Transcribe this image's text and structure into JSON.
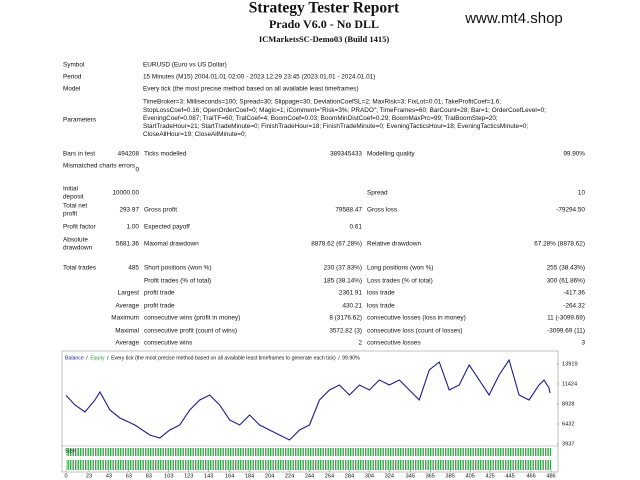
{
  "header": {
    "title": "Strategy Tester Report",
    "expert": "Prado V6.0 - No DLL",
    "server": "ICMarketsSC-Demo03 (Build 1415)",
    "watermark": "www.mt4.shop"
  },
  "info": [
    {
      "label": "Symbol",
      "value": "EURUSD (Euro vs US Dollar)"
    },
    {
      "label": "Period",
      "value": "15 Minutes (M15) 2004.01.01 02:00 - 2023.12.29 23:45 (2023.01.01 - 2024.01.01)"
    },
    {
      "label": "Model",
      "value": "Every tick (the most precise method based on all available least timeframes)"
    }
  ],
  "parameters": {
    "label": "Parameters",
    "lines": [
      "TimeBroker=3; Milliseconds=100; Spread=30; Slippage=30; DeviationCoefSL=2; MaxRisk=3; FixLot=0.01; TakeProfitCoef=1.6;",
      "StopLossCoef=0.16; OpenOrderCoef=0; Magic=1; iComment=\"Risk=3%; PRADO\"; TimeFrames=60; BarCount=28; Bar=1; OrderCoefLevel=0;",
      "EveningCoef=0.087; TralTF=60; TralCoef=4; BoomCoef=0.03; BoomMinDistCoef=0.29; BoomMaxPrc=99; TralBoomStep=20;",
      "StartTradeHour=21; StartTradeMinute=0; FinishTradeHour=18; FinishTradeMinute=0; EveningTacticsHour=18; EveningTacticsMinute=0;",
      "CloseAllHour=19; CloseAllMinute=0;"
    ]
  },
  "stats": [
    {
      "l1": "Bars in test",
      "v1": "494208",
      "l2": "Ticks modelled",
      "v2": "389345433",
      "l3": "Modelling quality",
      "v3": "99.90%"
    },
    {
      "l1": "Mismatched charts errors",
      "v1": "0"
    },
    {
      "l1": "Initial deposit",
      "v1": "10000.00",
      "l3": "Spread",
      "v3": "10"
    },
    {
      "l1": "Total net profit",
      "v1": "293.97",
      "l2": "Gross profit",
      "v2": "79588.47",
      "l3": "Gross loss",
      "v3": "-79294.50"
    },
    {
      "l1": "Profit factor",
      "v1": "1.00",
      "l2": "Expected payoff",
      "v2": "0.61"
    },
    {
      "l1": "Absolute drawdown",
      "v1": "5681.36",
      "l2": "Maximal drawdown",
      "v2": "8878.62 (67.28%)",
      "l3": "Relative drawdown",
      "v3": "67.28% (8878.62)"
    },
    {
      "l1": "Total trades",
      "v1": "485",
      "l2": "Short positions (won %)",
      "v2": "230 (37.83%)",
      "l3": "Long positions (won %)",
      "v3": "255 (38.43%)"
    },
    {
      "l2": "Profit trades (% of total)",
      "v2": "185 (38.14%)",
      "l3": "Loss trades (% of total)",
      "v3": "300 (61.86%)"
    },
    {
      "r1": "Largest",
      "l2": "profit trade",
      "v2": "2361.91",
      "l3": "loss trade",
      "v3": "-417.36"
    },
    {
      "r1": "Average",
      "l2": "profit trade",
      "v2": "430.21",
      "l3": "loss trade",
      "v3": "-264.32"
    },
    {
      "r1": "Maximum",
      "l2": "consecutive wins (profit in money)",
      "v2": "8 (3176.62)",
      "l3": "consecutive losses (loss in money)",
      "v3": "11 (-3099.69)"
    },
    {
      "r1": "Maximal",
      "l2": "consecutive profit (count of wins)",
      "v2": "3572.82 (3)",
      "l3": "consecutive loss (count of losses)",
      "v3": "-3099.69 (11)"
    },
    {
      "r1": "Average",
      "l2": "consecutive wins",
      "v2": "2",
      "l3": "consecutive losses",
      "v3": "3"
    }
  ],
  "chart_data": {
    "type": "line",
    "legend": {
      "balance": "Balance",
      "sep1": "/",
      "equity": "Equity",
      "sep2": "/",
      "model": "Every tick (the most precise method based on all available least timeframes to generate each tick)",
      "sep3": "/",
      "quality": "99.90%"
    },
    "size_label": "Size",
    "x": [
      0,
      9,
      19,
      29,
      34,
      44,
      54,
      69,
      84,
      94,
      104,
      114,
      124,
      134,
      144,
      154,
      164,
      174,
      184,
      194,
      204,
      214,
      224,
      234,
      244,
      254,
      264,
      274,
      284,
      294,
      304,
      314,
      324,
      334,
      344,
      354,
      364,
      374,
      384,
      394,
      404,
      414,
      424,
      434,
      444,
      454,
      464,
      474,
      479,
      484,
      485
    ],
    "series": [
      {
        "name": "Balance",
        "color": "#1c1c8f",
        "values": [
          10000,
          8804,
          7931,
          9428,
          10426,
          8181,
          7183,
          6309,
          5062,
          4688,
          5686,
          6309,
          8181,
          9428,
          10052,
          8804,
          6933,
          6309,
          7557,
          6309,
          5686,
          5062,
          4438,
          5686,
          6309,
          9428,
          10676,
          11299,
          10052,
          11299,
          10676,
          11923,
          11299,
          11923,
          10676,
          9428,
          13171,
          14169,
          10676,
          11299,
          13794,
          11923,
          10052,
          12547,
          14418,
          10052,
          9428,
          11299,
          11923,
          10925,
          10294
        ]
      }
    ],
    "xlim": [
      0,
      486
    ],
    "ylim": [
      3937,
      15040
    ],
    "xticks": [
      0,
      23,
      43,
      63,
      83,
      103,
      123,
      143,
      164,
      184,
      204,
      224,
      244,
      264,
      284,
      304,
      324,
      345,
      365,
      385,
      405,
      425,
      445,
      466,
      486
    ],
    "yticks": [
      13919,
      11424,
      8928,
      6432,
      3937
    ]
  }
}
